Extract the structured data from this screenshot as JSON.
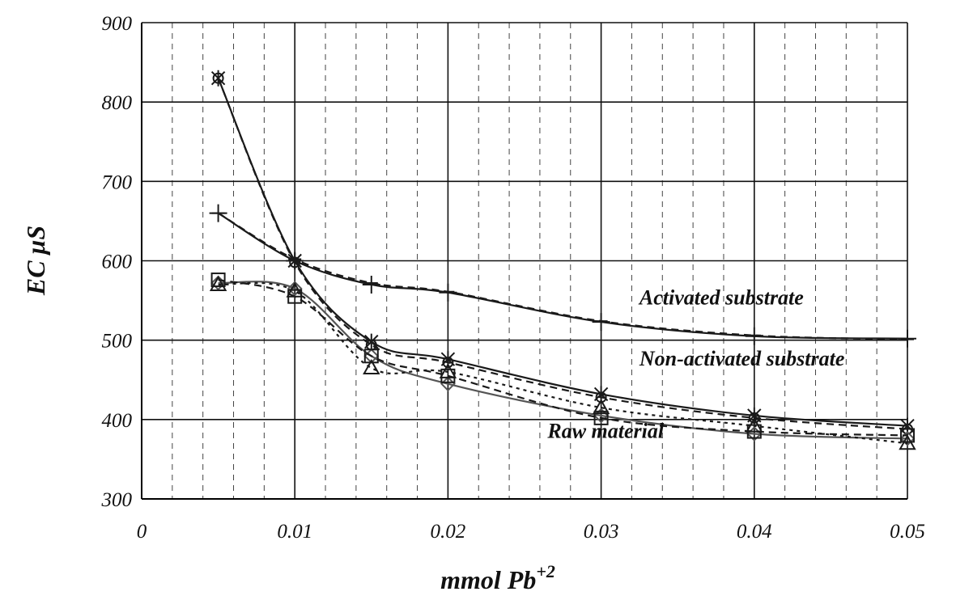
{
  "chart_data": {
    "type": "line",
    "xlabel": "mmol Pb",
    "xlabel_sup": "+2",
    "ylabel": "EC  μS",
    "xlim": [
      0,
      0.05
    ],
    "ylim": [
      300,
      900
    ],
    "x_ticks": [
      0,
      0.01,
      0.02,
      0.03,
      0.04,
      0.05
    ],
    "x_tick_labels": [
      "0",
      "0.01",
      "0.02",
      "0.03",
      "0.04",
      "0.05"
    ],
    "y_ticks": [
      300,
      400,
      500,
      600,
      700,
      800,
      900
    ],
    "y_tick_labels": [
      "300",
      "400",
      "500",
      "600",
      "700",
      "800",
      "900"
    ],
    "grid": true,
    "annotations": [
      {
        "text": "Activated substrate",
        "x": 0.0325,
        "y": 545
      },
      {
        "text": "Non-activated substrate",
        "x": 0.0325,
        "y": 468
      },
      {
        "text": "Raw material",
        "x": 0.0265,
        "y": 377
      }
    ],
    "series": [
      {
        "marker": "plus",
        "dash": "solid",
        "color": "#1a1a1a",
        "x": [
          0.005,
          0.01,
          0.015,
          0.02,
          0.03,
          0.04,
          0.05
        ],
        "y": [
          660,
          600,
          570,
          560,
          523,
          505,
          502
        ]
      },
      {
        "marker": "dash",
        "dash": "dashed",
        "color": "#1a1a1a",
        "x": [
          0.005,
          0.01,
          0.015,
          0.02,
          0.03,
          0.04,
          0.05
        ],
        "y": [
          660,
          602,
          572,
          561,
          524,
          506,
          501
        ]
      },
      {
        "marker": "x",
        "dash": "solid",
        "color": "#1a1a1a",
        "x": [
          0.005,
          0.01,
          0.015,
          0.02,
          0.03,
          0.04,
          0.05
        ],
        "y": [
          830,
          600,
          498,
          476,
          432,
          405,
          392
        ]
      },
      {
        "marker": "circle",
        "dash": "dashed",
        "color": "#1a1a1a",
        "x": [
          0.005,
          0.01,
          0.015,
          0.02,
          0.03,
          0.04,
          0.05
        ],
        "y": [
          830,
          598,
          494,
          472,
          428,
          402,
          388
        ]
      },
      {
        "marker": "diamond",
        "dash": "solid",
        "color": "#555555",
        "x": [
          0.005,
          0.01,
          0.015,
          0.02,
          0.03,
          0.04,
          0.05
        ],
        "y": [
          572,
          565,
          480,
          445,
          405,
          382,
          376
        ]
      },
      {
        "marker": "square",
        "dash": "dashed",
        "color": "#1a1a1a",
        "x": [
          0.005,
          0.01,
          0.015,
          0.02,
          0.03,
          0.04,
          0.05
        ],
        "y": [
          576,
          555,
          480,
          455,
          402,
          385,
          380
        ]
      },
      {
        "marker": "triangle",
        "dash": "dotted",
        "color": "#1a1a1a",
        "x": [
          0.005,
          0.01,
          0.015,
          0.02,
          0.03,
          0.04,
          0.05
        ],
        "y": [
          570,
          562,
          465,
          460,
          415,
          392,
          370
        ]
      }
    ]
  }
}
